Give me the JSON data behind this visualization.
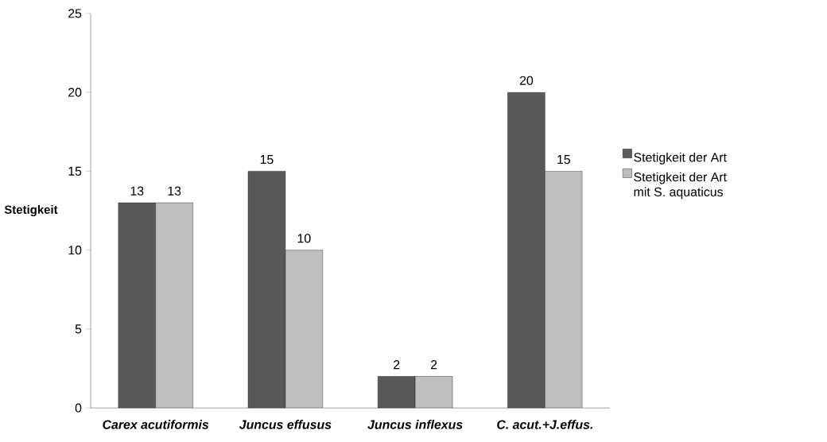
{
  "chart_data": {
    "type": "bar",
    "ylabel": "Stetigkeit",
    "categories": [
      "*Carex acutiformis*",
      "*Juncus effusus*",
      "*Juncus inflexus*",
      "*C. acut.+J.effus.*"
    ],
    "series": [
      {
        "name": "Stetigkeit der Art",
        "color": "#595959",
        "values": [
          13,
          15,
          2,
          20
        ]
      },
      {
        "name": "Stetigkeit der Art mit S. aquaticus",
        "color": "#bfbfbf",
        "values": [
          13,
          10,
          2,
          15
        ]
      }
    ],
    "ylim": [
      0,
      25
    ],
    "yticks": [
      0,
      5,
      10,
      15,
      20,
      25
    ],
    "data_labels": true,
    "legend": "right",
    "grid": false
  }
}
